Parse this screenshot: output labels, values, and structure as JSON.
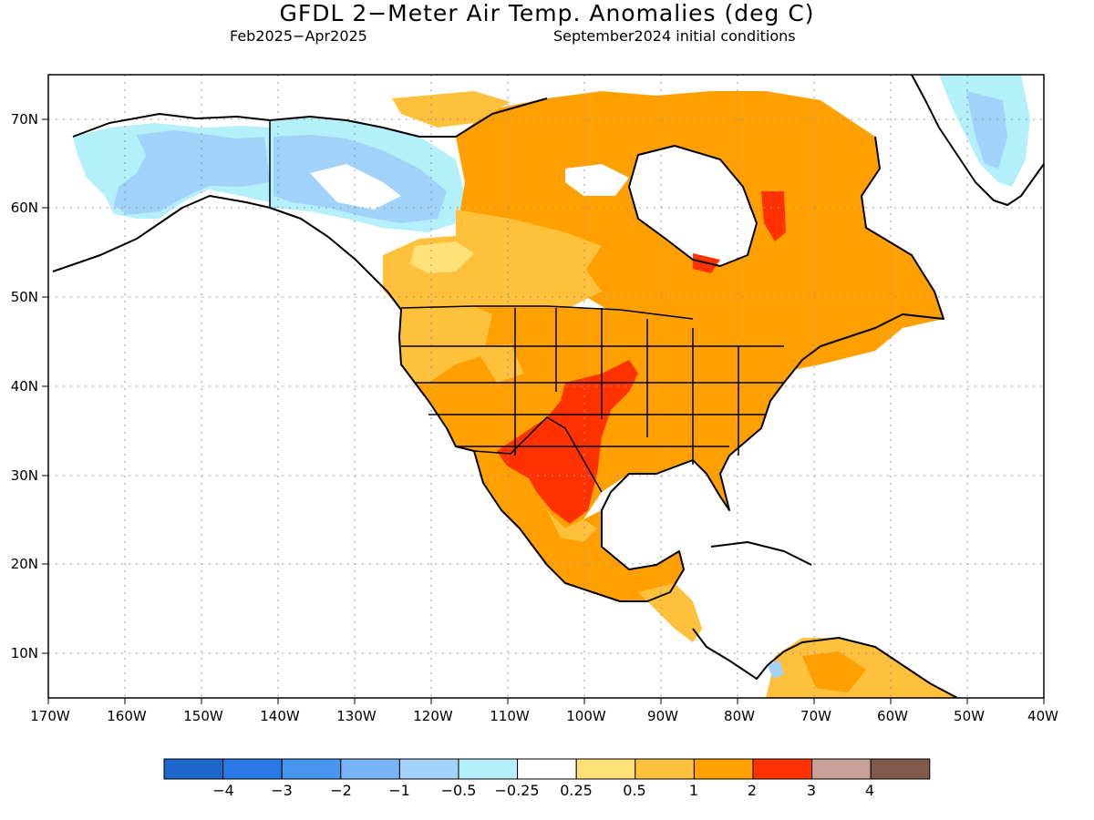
{
  "title": "GFDL 2−Meter Air Temp. Anomalies (deg C)",
  "subtitle_left": "Feb2025−Apr2025",
  "subtitle_right": "September2024 initial conditions",
  "map": {
    "lon_range": [
      -170,
      -40
    ],
    "lat_range": [
      5,
      75
    ],
    "lat_ticks": [
      {
        "value": 70,
        "label": "70N"
      },
      {
        "value": 60,
        "label": "60N"
      },
      {
        "value": 50,
        "label": "50N"
      },
      {
        "value": 40,
        "label": "40N"
      },
      {
        "value": 30,
        "label": "30N"
      },
      {
        "value": 20,
        "label": "20N"
      },
      {
        "value": 10,
        "label": "10N"
      }
    ],
    "lon_ticks": [
      {
        "value": -170,
        "label": "170W"
      },
      {
        "value": -160,
        "label": "160W"
      },
      {
        "value": -150,
        "label": "150W"
      },
      {
        "value": -140,
        "label": "140W"
      },
      {
        "value": -130,
        "label": "130W"
      },
      {
        "value": -120,
        "label": "120W"
      },
      {
        "value": -110,
        "label": "110W"
      },
      {
        "value": -100,
        "label": "100W"
      },
      {
        "value": -90,
        "label": "90W"
      },
      {
        "value": -80,
        "label": "80W"
      },
      {
        "value": -70,
        "label": "70W"
      },
      {
        "value": -60,
        "label": "60W"
      },
      {
        "value": -50,
        "label": "50W"
      },
      {
        "value": -40,
        "label": "40W"
      }
    ],
    "grid": "dotted"
  },
  "colorbar": {
    "colors": [
      "#1c66cc",
      "#2878e6",
      "#4696f0",
      "#78b4f5",
      "#a0d2fa",
      "#b4f0fa",
      "#ffffff",
      "#ffe178",
      "#ffc03c",
      "#ffa000",
      "#ff3200",
      "#c8a096",
      "#825a4b"
    ],
    "labels": [
      "−4",
      "−3",
      "−2",
      "−1",
      "−0.5",
      "−0.25",
      "0.25",
      "0.5",
      "1",
      "2",
      "3",
      "4"
    ]
  },
  "colors": {
    "cold_light": "#a0d2fa",
    "cold_faint": "#b4f0fa",
    "warm_light": "#ffe178",
    "warm_mid": "#ffc03c",
    "warm": "#ffa000",
    "hot": "#ff3200"
  }
}
